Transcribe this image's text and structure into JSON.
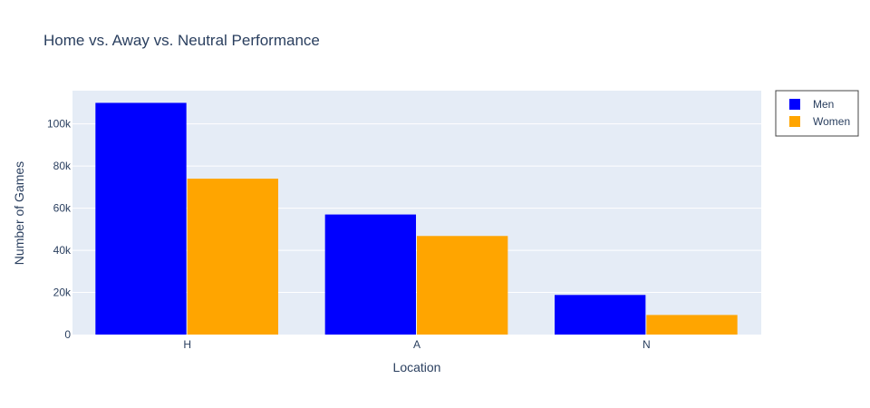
{
  "chart_data": {
    "type": "bar",
    "title": "Home vs. Away vs. Neutral Performance",
    "xlabel": "Location",
    "ylabel": "Number of Games",
    "categories": [
      "H",
      "A",
      "N"
    ],
    "series": [
      {
        "name": "Men",
        "color": "#0000ff",
        "values": [
          110000,
          57000,
          18800
        ]
      },
      {
        "name": "Women",
        "color": "#ffa500",
        "values": [
          74000,
          46800,
          9300
        ]
      }
    ],
    "yticks": [
      0,
      20000,
      40000,
      60000,
      80000,
      100000
    ],
    "ytick_labels": [
      "0",
      "20k",
      "40k",
      "60k",
      "80k",
      "100k"
    ],
    "ylim": [
      0,
      115789
    ],
    "grid": true,
    "legend_position": "top-right",
    "plot_background": "#e5ecf6"
  }
}
